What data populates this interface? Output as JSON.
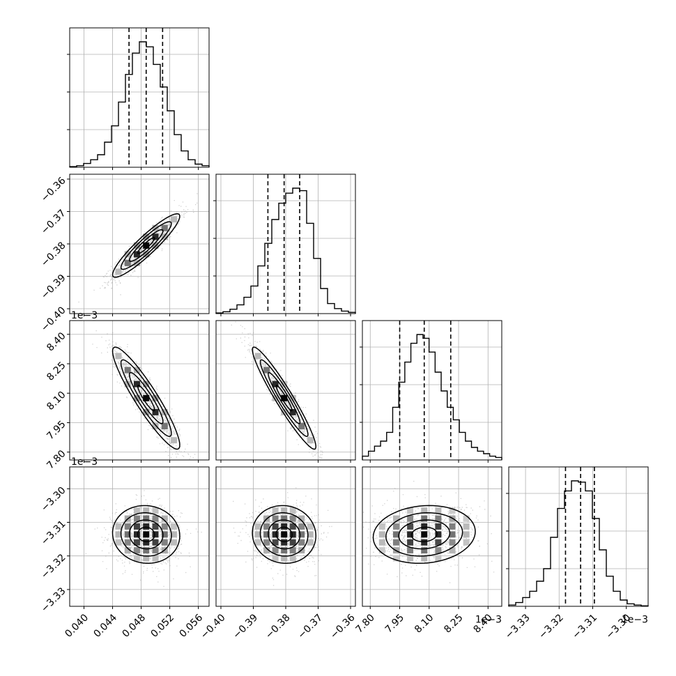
{
  "chart_data": {
    "type": "corner",
    "colors": {
      "line": "#000000",
      "grid": "#b0b0b0",
      "scatter": "#9a9a9a",
      "density_dark": "#000000",
      "density_light": "#f2f2f2"
    },
    "grid": true,
    "parameters": [
      {
        "range": [
          0.038,
          0.0575
        ],
        "ticks": [
          0.04,
          0.044,
          0.048,
          0.052,
          0.056
        ],
        "tick_labels": [
          "0.040",
          "0.044",
          "0.048",
          "0.052",
          "0.056"
        ],
        "offset_label": "",
        "quantiles": [
          0.0463,
          0.0487,
          0.051
        ],
        "histogram": [
          0.005,
          0.012,
          0.03,
          0.06,
          0.1,
          0.2,
          0.33,
          0.52,
          0.74,
          0.91,
          1.0,
          0.96,
          0.82,
          0.64,
          0.45,
          0.26,
          0.13,
          0.06,
          0.025,
          0.012
        ]
      },
      {
        "range": [
          -0.4015,
          -0.3585
        ],
        "ticks": [
          -0.4,
          -0.39,
          -0.38,
          -0.37,
          -0.36
        ],
        "tick_labels": [
          "−0.40",
          "−0.39",
          "−0.38",
          "−0.37",
          "−0.36"
        ],
        "offset_label": "",
        "quantiles": [
          -0.3855,
          -0.3805,
          -0.3757
        ],
        "histogram": [
          0.005,
          0.015,
          0.035,
          0.07,
          0.13,
          0.22,
          0.38,
          0.56,
          0.75,
          0.88,
          0.96,
          1.0,
          0.98,
          0.72,
          0.44,
          0.2,
          0.08,
          0.04,
          0.02,
          0.01
        ]
      },
      {
        "range": [
          7.76,
          8.47
        ],
        "ticks": [
          7.8,
          7.95,
          8.1,
          8.25,
          8.4
        ],
        "tick_labels": [
          "7.80",
          "7.95",
          "8.10",
          "8.25",
          "8.40"
        ],
        "offset_label": "1e−3",
        "quantiles": [
          7.95,
          8.075,
          8.21
        ],
        "histogram": [
          0.03,
          0.07,
          0.11,
          0.15,
          0.22,
          0.42,
          0.62,
          0.78,
          0.93,
          1.0,
          0.97,
          0.86,
          0.7,
          0.55,
          0.42,
          0.32,
          0.22,
          0.15,
          0.1,
          0.07,
          0.05,
          0.03,
          0.02
        ]
      },
      {
        "range": [
          -3.335,
          -3.2935
        ],
        "ticks": [
          -3.33,
          -3.32,
          -3.31,
          -3.3
        ],
        "tick_labels": [
          "−3.33",
          "−3.32",
          "−3.31",
          "−3.30"
        ],
        "offset_label": "1e−3",
        "quantiles": [
          -3.3181,
          -3.3136,
          -3.3095
        ],
        "histogram": [
          0.01,
          0.03,
          0.07,
          0.12,
          0.2,
          0.3,
          0.55,
          0.78,
          0.92,
          1.0,
          0.99,
          0.92,
          0.7,
          0.45,
          0.24,
          0.12,
          0.05,
          0.02,
          0.01,
          0.004
        ]
      }
    ],
    "correlations": [
      [
        1,
        0.92,
        -0.92,
        -0.05
      ],
      [
        0.92,
        1,
        -0.95,
        -0.05
      ],
      [
        -0.92,
        -0.95,
        1,
        0.1
      ],
      [
        -0.05,
        -0.05,
        0.1,
        1
      ]
    ]
  }
}
